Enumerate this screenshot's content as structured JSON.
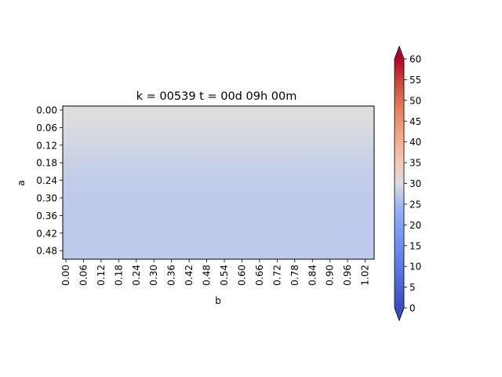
{
  "chart_data": {
    "type": "heatmap",
    "title": "k = 00539 t = 00d 09h 00m",
    "xlabel": "b",
    "ylabel": "a",
    "x_ticks": [
      "0.00",
      "0.06",
      "0.12",
      "0.18",
      "0.24",
      "0.30",
      "0.36",
      "0.42",
      "0.48",
      "0.54",
      "0.60",
      "0.66",
      "0.72",
      "0.78",
      "0.84",
      "0.90",
      "0.96",
      "1.02"
    ],
    "y_ticks": [
      "0.00",
      "0.06",
      "0.12",
      "0.18",
      "0.24",
      "0.30",
      "0.36",
      "0.42",
      "0.48"
    ],
    "xlim": [
      0.0,
      1.05
    ],
    "ylim": [
      0.51,
      0.0
    ],
    "y_profile": {
      "a": [
        0.0,
        0.03,
        0.06,
        0.09,
        0.12,
        0.15,
        0.18,
        0.21,
        0.24,
        0.27,
        0.3,
        0.33,
        0.36,
        0.39,
        0.42,
        0.45,
        0.48,
        0.51
      ],
      "values": [
        30.2,
        30.0,
        29.8,
        29.5,
        29.1,
        28.7,
        28.3,
        28.0,
        27.8,
        27.6,
        27.5,
        27.4,
        27.4,
        27.3,
        27.3,
        27.3,
        27.3,
        27.3
      ]
    },
    "colorbar": {
      "colormap": "coolwarm",
      "vmin": 0,
      "vmax": 60,
      "ticks": [
        "0",
        "5",
        "10",
        "15",
        "20",
        "25",
        "30",
        "35",
        "40",
        "45",
        "50",
        "55",
        "60"
      ],
      "extend": "both"
    },
    "grid": false
  }
}
